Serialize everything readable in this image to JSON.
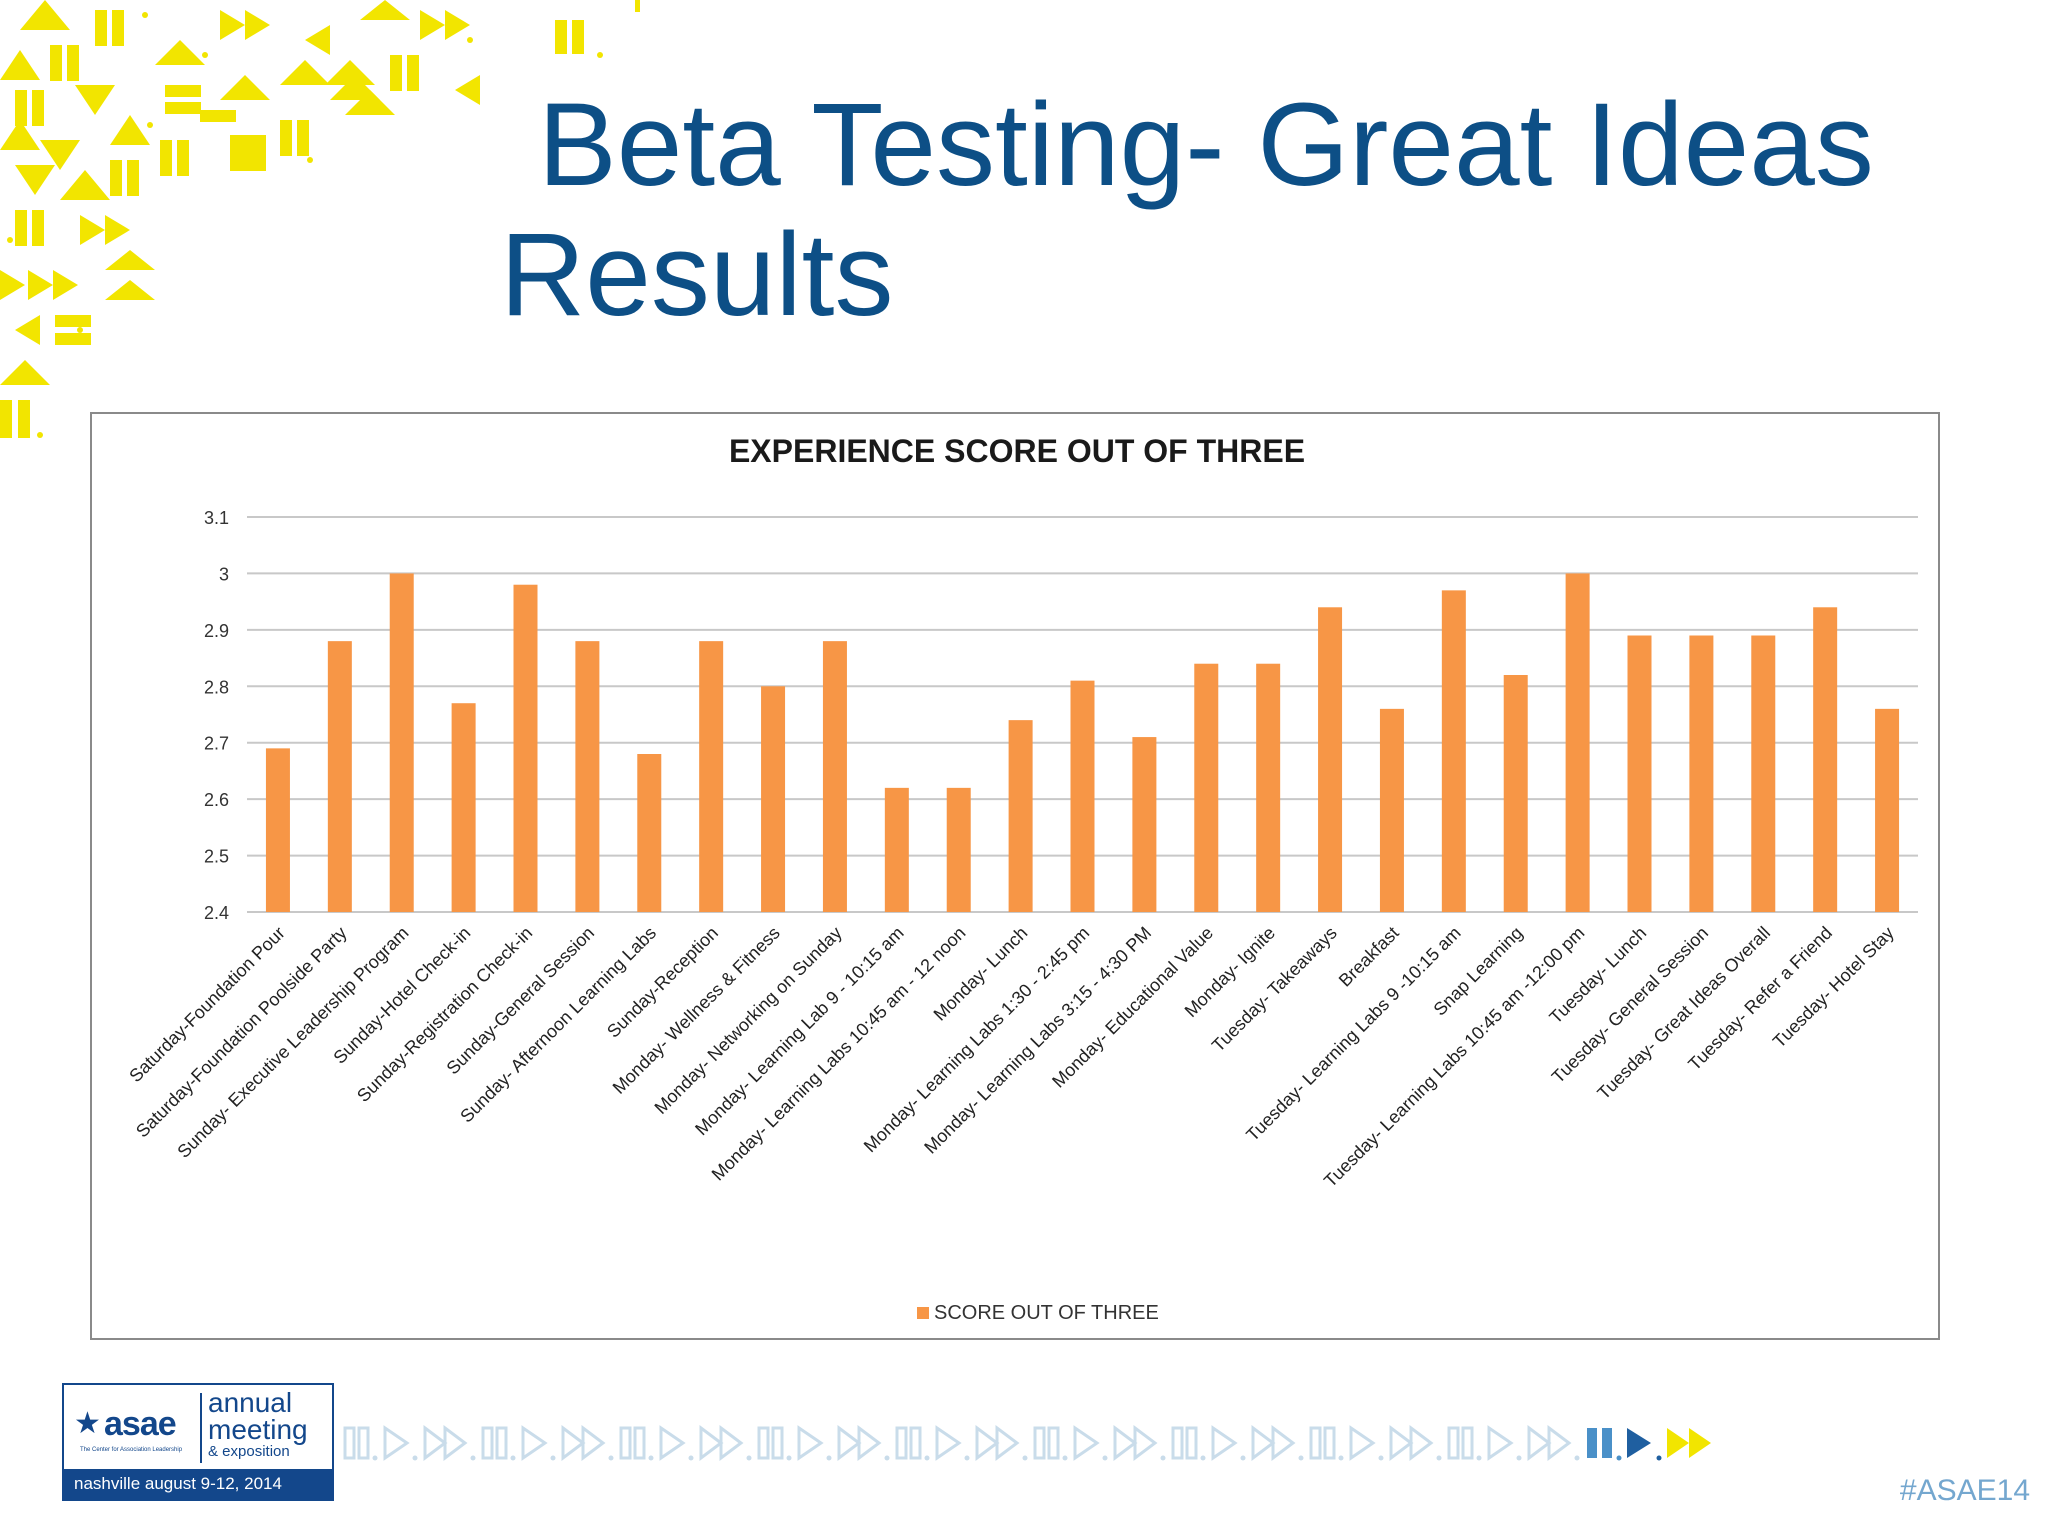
{
  "slide": {
    "title_line1": "Beta Testing- Great Ideas",
    "title_line2": "Results",
    "hashtag": "#ASAE14"
  },
  "logo": {
    "brand": "asae",
    "tagline": "The Center for Association Leadership",
    "line1": "annual",
    "line2": "meeting",
    "line3": "& exposition",
    "location_date": "nashville  august 9-12, 2014",
    "icon": "star-icon"
  },
  "colors": {
    "bar": "#f79646",
    "title": "#0d4f86",
    "decor": "#f2e500",
    "logo": "#13478b",
    "strip": "#c9dcea"
  },
  "chart_data": {
    "type": "bar",
    "title": "EXPERIENCE SCORE OUT OF THREE",
    "xlabel": "",
    "ylabel": "",
    "ylim": [
      2.4,
      3.1
    ],
    "yticks": [
      "2.4",
      "2.5",
      "2.6",
      "2.7",
      "2.8",
      "2.9",
      "3",
      "3.1"
    ],
    "grid": true,
    "legend_position": "bottom",
    "categories": [
      "Saturday-Foundation Pour",
      "Saturday-Foundation Poolside Party",
      "Sunday- Executive Leadership Program",
      "Sunday-Hotel Check-in",
      "Sunday-Registration Check-in",
      "Sunday-General Session",
      "Sunday- Afternoon Learning Labs",
      "Sunday-Reception",
      "Monday- Wellness & Fitness",
      "Monday- Networking on Sunday",
      "Monday- Learning Lab 9 - 10:15 am",
      "Monday- Learning Labs 10:45 am - 12 noon",
      "Monday- Lunch",
      "Monday- Learning Labs 1:30 - 2:45 pm",
      "Monday- Learning Labs 3:15 - 4:30 PM",
      "Monday- Educational Value",
      "Monday- Ignite",
      "Tuesday- Takeaways",
      "Breakfast",
      "Tuesday- Learning Labs 9 -10:15 am",
      "Snap Learning",
      "Tuesday- Learning Labs 10:45 am -12:00 pm",
      "Tuesday- Lunch",
      "Tuesday- General Session",
      "Tuesday- Great Ideas Overall",
      "Tuesday- Refer a Friend",
      "Tuesday- Hotel Stay"
    ],
    "series": [
      {
        "name": "SCORE OUT OF THREE",
        "values": [
          2.69,
          2.88,
          3.0,
          2.77,
          2.98,
          2.88,
          2.68,
          2.88,
          2.8,
          2.88,
          2.62,
          2.62,
          2.74,
          2.81,
          2.71,
          2.84,
          2.84,
          2.94,
          2.76,
          2.97,
          2.82,
          3.0,
          2.89,
          2.89,
          2.89,
          2.94,
          2.76
        ]
      }
    ]
  }
}
